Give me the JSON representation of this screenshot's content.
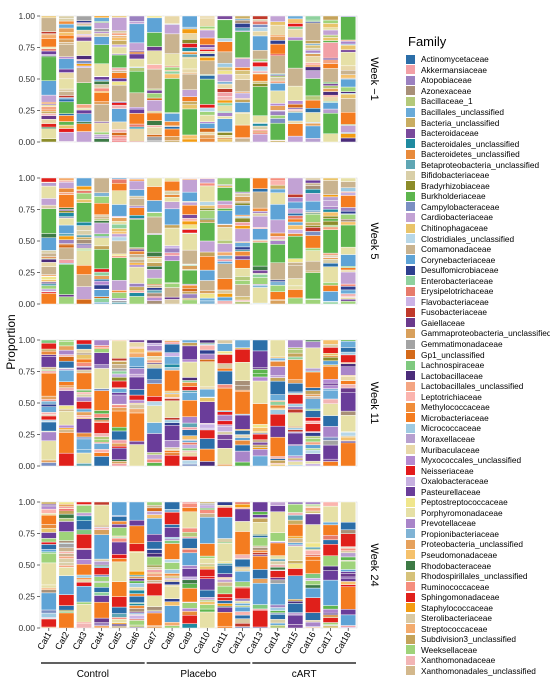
{
  "chart_data": {
    "type": "bar",
    "stacked": true,
    "ylabel": "Proportion",
    "ylim": [
      0,
      1
    ],
    "yticks": [
      "0.00",
      "0.25",
      "0.50",
      "0.75",
      "1.00"
    ],
    "categories": [
      "Cat1",
      "Cat2",
      "Cat3",
      "Cat4",
      "Cat5",
      "Cat6",
      "Cat7",
      "Cat8",
      "Cat9",
      "Cat10",
      "Cat11",
      "Cat12",
      "Cat13",
      "Cat14",
      "Cat15",
      "Cat16",
      "Cat17",
      "Cat18"
    ],
    "groups": [
      {
        "label": "Control",
        "members": [
          "Cat1",
          "Cat2",
          "Cat3",
          "Cat4",
          "Cat5",
          "Cat6"
        ]
      },
      {
        "label": "Placebo",
        "members": [
          "Cat7",
          "Cat8",
          "Cat9",
          "Cat10",
          "Cat11",
          "Cat12"
        ]
      },
      {
        "label": "cART",
        "members": [
          "Cat13",
          "Cat14",
          "Cat15",
          "Cat16",
          "Cat17",
          "Cat18"
        ]
      }
    ],
    "panels": [
      "Week −1",
      "Week 5",
      "Week 11",
      "Week 24"
    ],
    "legend_title": "Family",
    "legend_position": "right",
    "families": [
      {
        "name": "Actinomycetaceae",
        "color": "#2b6ea8"
      },
      {
        "name": "Akkermansiaceae",
        "color": "#f2a0a6"
      },
      {
        "name": "Atopobiaceae",
        "color": "#9b81c0"
      },
      {
        "name": "Azonexaceae",
        "color": "#a89078"
      },
      {
        "name": "Bacillaceae_1",
        "color": "#b4c97a"
      },
      {
        "name": "Bacillales_unclassified",
        "color": "#6aabd8"
      },
      {
        "name": "Bacteria_unclassified",
        "color": "#c9ad62"
      },
      {
        "name": "Bacteroidaceae",
        "color": "#7a4a9c"
      },
      {
        "name": "Bacteroidales_unclassified",
        "color": "#1f8aa0"
      },
      {
        "name": "Bacteroidetes_unclassified",
        "color": "#e88a3b"
      },
      {
        "name": "Betaproteobacteria_unclassified",
        "color": "#5fa6b4"
      },
      {
        "name": "Bifidobacteriaceae",
        "color": "#d9cfa8"
      },
      {
        "name": "Bradyrhizobiaceae",
        "color": "#8c8c2a"
      },
      {
        "name": "Burkholderiaceae",
        "color": "#5db54e"
      },
      {
        "name": "Campylobacteraceae",
        "color": "#7b8fc2"
      },
      {
        "name": "Cardiobacteriaceae",
        "color": "#c2a2d4"
      },
      {
        "name": "Chitinophagaceae",
        "color": "#e9c46a"
      },
      {
        "name": "Clostridiales_unclassified",
        "color": "#b7d7e8"
      },
      {
        "name": "Comamonadaceae",
        "color": "#c9b38f"
      },
      {
        "name": "Corynebacteriaceae",
        "color": "#5ea3d6"
      },
      {
        "name": "Desulfomicrobiaceae",
        "color": "#2e3f8f"
      },
      {
        "name": "Enterobacteriaceae",
        "color": "#8fd19e"
      },
      {
        "name": "Erysipelotrichaceae",
        "color": "#e77b6b"
      },
      {
        "name": "Flavobacteriaceae",
        "color": "#cbb3e6"
      },
      {
        "name": "Fusobacteriaceae",
        "color": "#c0392b"
      },
      {
        "name": "Gaiellaceae",
        "color": "#6b3a8c"
      },
      {
        "name": "Gammaproteobacteria_unclassified",
        "color": "#d8a05c"
      },
      {
        "name": "Gemmatimonadaceae",
        "color": "#a3a3a3"
      },
      {
        "name": "Gp1_unclassified",
        "color": "#d46a1a"
      },
      {
        "name": "Lachnospiraceae",
        "color": "#7fc97f"
      },
      {
        "name": "Lactobacillaceae",
        "color": "#4b2c7a"
      },
      {
        "name": "Lactobacillales_unclassified",
        "color": "#f4a582"
      },
      {
        "name": "Leptotrichiaceae",
        "color": "#fbb4ae"
      },
      {
        "name": "Methylococcaceae",
        "color": "#f08d3a"
      },
      {
        "name": "Microbacteriaceae",
        "color": "#f47c20"
      },
      {
        "name": "Micrococcaceae",
        "color": "#9ecae1"
      },
      {
        "name": "Moraxellaceae",
        "color": "#b79fcf"
      },
      {
        "name": "Muribaculaceae",
        "color": "#e8d8a8"
      },
      {
        "name": "Myxococcales_unclassified",
        "color": "#b48ad1"
      },
      {
        "name": "Neisseriaceae",
        "color": "#e31a1c"
      },
      {
        "name": "Oxalobacteraceae",
        "color": "#c6b0e0"
      },
      {
        "name": "Pasteurellaceae",
        "color": "#6a3d9a"
      },
      {
        "name": "Peptostreptococcaceae",
        "color": "#f0e68c"
      },
      {
        "name": "Porphyromonadaceae",
        "color": "#e6e0a6"
      },
      {
        "name": "Prevotellaceae",
        "color": "#a985c9"
      },
      {
        "name": "Propionibacteriaceae",
        "color": "#7fb3d5"
      },
      {
        "name": "Proteobacteria_unclassified",
        "color": "#e6a15c"
      },
      {
        "name": "Pseudomonadaceae",
        "color": "#f5c16c"
      },
      {
        "name": "Rhodobacteraceae",
        "color": "#3d7a45"
      },
      {
        "name": "Rhodospirillales_unclassified",
        "color": "#d6c27a"
      },
      {
        "name": "Ruminococcaceae",
        "color": "#f58e7e"
      },
      {
        "name": "Sphingomonadaceae",
        "color": "#e0201b"
      },
      {
        "name": "Staphylococcaceae",
        "color": "#f39c12"
      },
      {
        "name": "Sterolibacteriaceae",
        "color": "#d9c9a3"
      },
      {
        "name": "Streptococcaceae",
        "color": "#f3ab6d"
      },
      {
        "name": "Subdivision3_unclassified",
        "color": "#c4a35a"
      },
      {
        "name": "Weeksellaceae",
        "color": "#9fd37a"
      },
      {
        "name": "Xanthomonadaceae",
        "color": "#f2b5b5"
      },
      {
        "name": "Xanthomonadales_unclassified",
        "color": "#d3b88c"
      }
    ]
  }
}
